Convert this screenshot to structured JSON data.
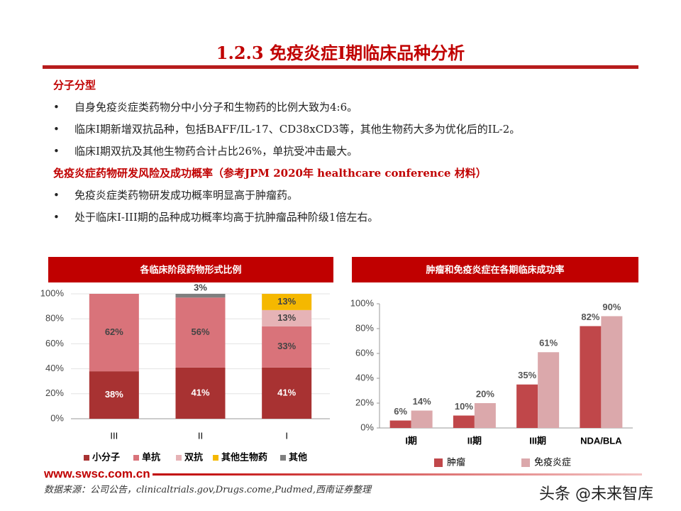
{
  "header": {
    "title": "1.2.3 免疫炎症I期临床品种分析"
  },
  "sections": [
    {
      "heading": "分子分型",
      "bullets": [
        "自身免疫炎症类药物分中小分子和生物药的比例大致为4:6。",
        "临床I期新增双抗品种，包括BAFF/IL-17、CD38xCD3等，其他生物药大多为优化后的IL-2。",
        "临床I期双抗及其他生物药合计占比26%，单抗受冲击最大。"
      ]
    },
    {
      "heading": "免疫炎症药物研发风险及成功概率（参考JPM 2020年 healthcare conference 材料）",
      "bullets": [
        "免疫炎症类药物研发成功概率明显高于肿瘤药。",
        "处于临床I-III期的品种成功概率均高于抗肿瘤品种阶级1倍左右。"
      ]
    }
  ],
  "footer": {
    "logo": "www.swsc.com.cn",
    "source": "数据来源：公司公告，clinicaltrials.gov,Drugs.come,Pudmed,西南证券整理",
    "watermark": "头条 @未来智库"
  },
  "chart_data": [
    {
      "type": "stacked_bar",
      "title": "各临床阶段药物形式比例",
      "categories": [
        "III",
        "II",
        "I"
      ],
      "series": [
        {
          "name": "小分子",
          "color": "#a83232",
          "values": [
            38,
            41,
            41
          ],
          "value_labels": [
            "38%",
            "41%",
            "41%"
          ]
        },
        {
          "name": "单抗",
          "color": "#d9737a",
          "values": [
            62,
            56,
            33
          ],
          "value_labels": [
            "62%",
            "56%",
            "33%"
          ]
        },
        {
          "name": "双抗",
          "color": "#e6b3b6",
          "values": [
            null,
            null,
            13
          ],
          "value_labels": [
            null,
            null,
            "13%"
          ]
        },
        {
          "name": "其他生物药",
          "color": "#f5b800",
          "values": [
            null,
            null,
            13
          ],
          "value_labels": [
            null,
            null,
            "13%"
          ]
        },
        {
          "name": "其他",
          "color": "#7f7f7f",
          "values": [
            null,
            3,
            null
          ],
          "value_labels": [
            null,
            "3%",
            null
          ]
        }
      ],
      "ylim": [
        0,
        100
      ],
      "yticks": [
        {
          "value": 0,
          "label": "0%"
        },
        {
          "value": 20,
          "label": "20%"
        },
        {
          "value": 40,
          "label": "40%"
        },
        {
          "value": 60,
          "label": "60%"
        },
        {
          "value": 80,
          "label": "80%"
        },
        {
          "value": 100,
          "label": "100%"
        }
      ],
      "grid": true
    },
    {
      "type": "grouped_bar",
      "title": "肿瘤和免疫炎症在各期临床成功率",
      "categories": [
        "I期",
        "II期",
        "III期",
        "NDA/BLA"
      ],
      "series": [
        {
          "name": "肿瘤",
          "color": "#c0474a",
          "values": [
            6,
            10,
            35,
            82
          ],
          "value_labels": [
            "6%",
            "10%",
            "35%",
            "82%"
          ]
        },
        {
          "name": "免疫炎症",
          "color": "#dba8ab",
          "values": [
            14,
            20,
            61,
            90
          ],
          "value_labels": [
            "14%",
            "20%",
            "61%",
            "90%"
          ]
        }
      ],
      "ylim": [
        0,
        100
      ],
      "yticks": [
        {
          "value": 0,
          "label": "0%"
        },
        {
          "value": 20,
          "label": "20%"
        },
        {
          "value": 40,
          "label": "40%"
        },
        {
          "value": 60,
          "label": "60%"
        },
        {
          "value": 80,
          "label": "80%"
        },
        {
          "value": 100,
          "label": "100%"
        }
      ],
      "grid": false
    }
  ]
}
